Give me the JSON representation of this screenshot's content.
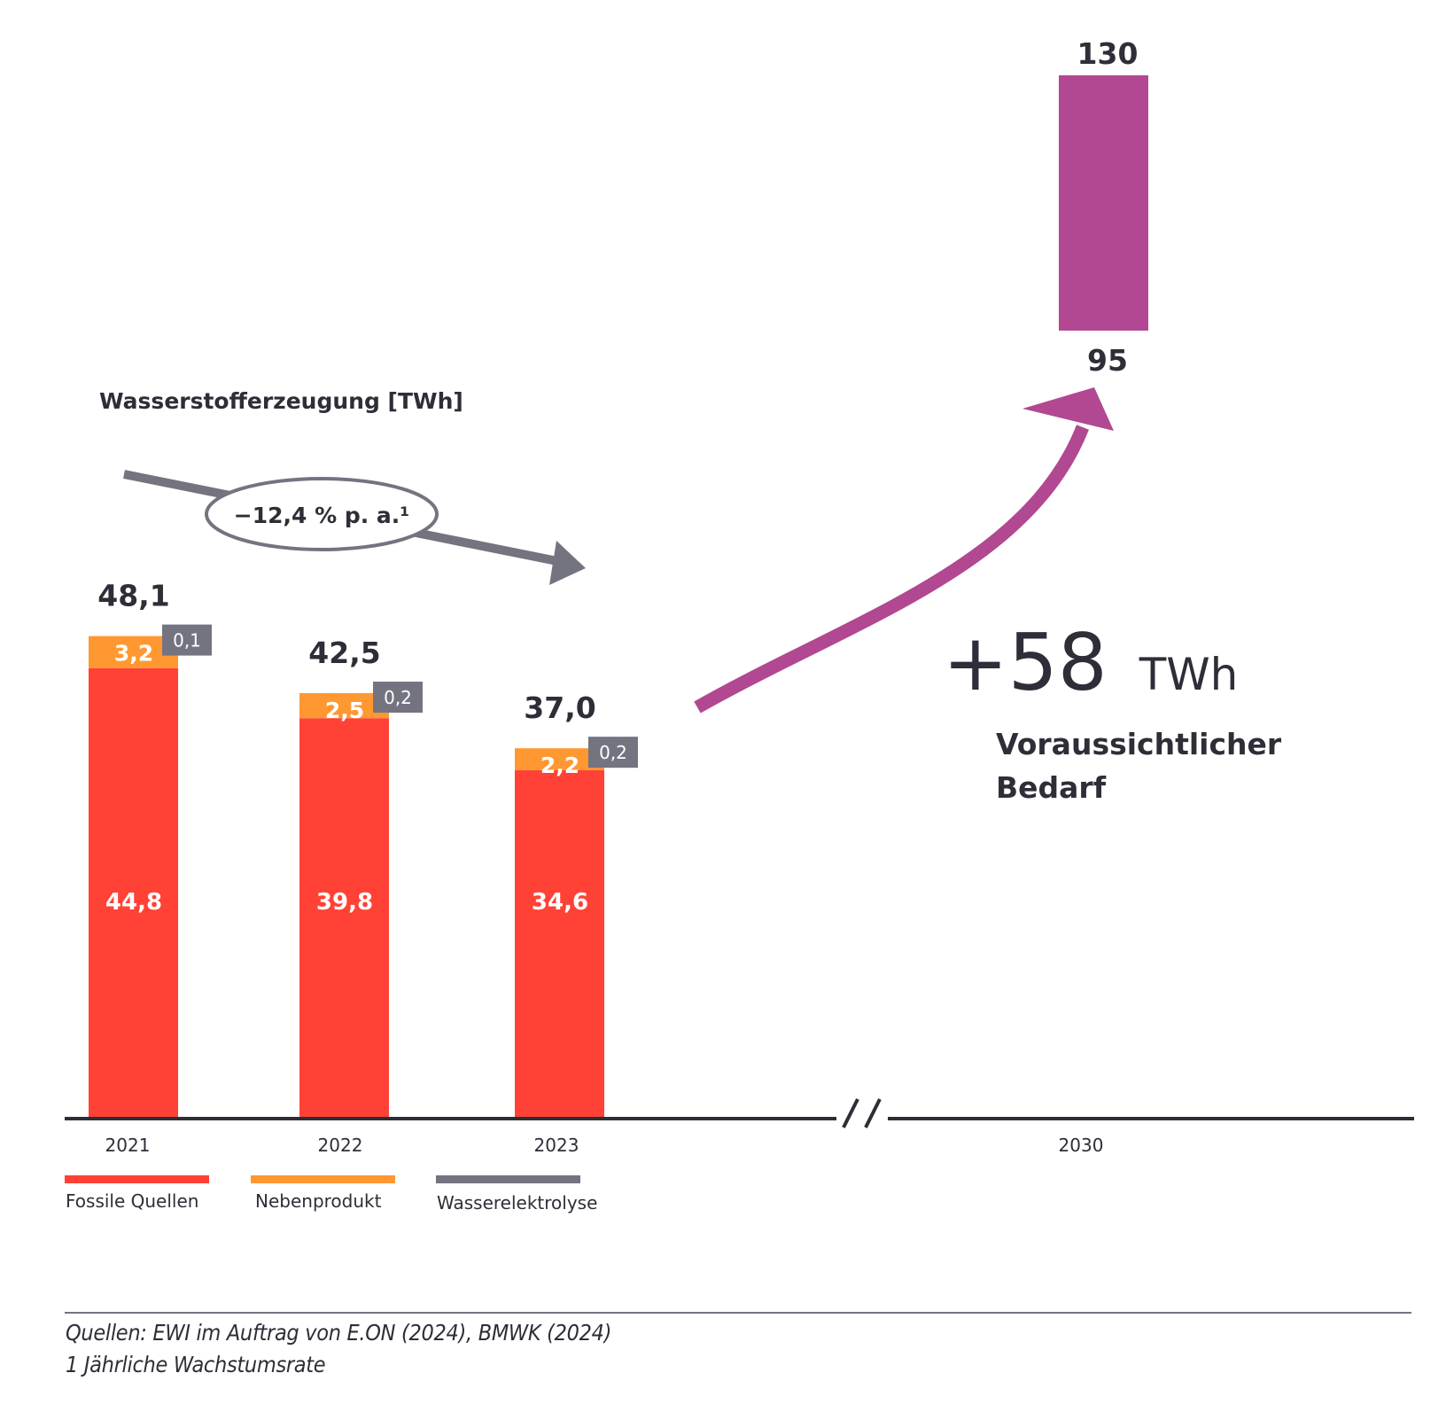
{
  "colors": {
    "fossil": "#ff4136",
    "byproduct": "#ff9831",
    "electrolysis": "#747480",
    "demand": "#b14891",
    "text": "#2e2e38",
    "axis": "#2e2e38"
  },
  "chart_data": {
    "type": "bar",
    "title": "Wasserstofferzeugung [TWh]",
    "xlabel": "",
    "ylabel": "TWh",
    "categories": [
      "2021",
      "2022",
      "2023",
      "2030"
    ],
    "series": [
      {
        "name": "Fossile Quellen",
        "key": "fossil",
        "values": [
          44.8,
          39.8,
          34.6,
          null
        ],
        "labels": [
          "44,8",
          "39,8",
          "34,6",
          null
        ]
      },
      {
        "name": "Nebenprodukt",
        "key": "byproduct",
        "values": [
          3.2,
          2.5,
          2.2,
          null
        ],
        "labels": [
          "3,2",
          "2,5",
          "2,2",
          null
        ]
      },
      {
        "name": "Wasserelektrolyse",
        "key": "electrolysis",
        "values": [
          0.1,
          0.2,
          0.2,
          null
        ],
        "labels": [
          "0,1",
          "0,2",
          "0,2",
          null
        ]
      }
    ],
    "totals": [
      48.1,
      42.5,
      37.0
    ],
    "total_labels": [
      "48,1",
      "42,5",
      "37,0"
    ],
    "projection_2030": {
      "category": "2030",
      "low": 95,
      "high": 130,
      "low_label": "95",
      "high_label": "130",
      "series": "Voraussichtlicher Bedarf"
    },
    "axis_break": "//",
    "legend": {
      "position": "bottom-left",
      "entries": [
        "Fossile Quellen",
        "Nebenprodukt",
        "Wasserelektrolyse"
      ]
    },
    "grid": false,
    "annotations": [
      {
        "type": "trend-arrow-down",
        "text": "−12,4 % p. a.¹",
        "value": -12.4,
        "unit": "% p. a."
      },
      {
        "type": "growth-arrow-up",
        "text": "+58 TWh",
        "value": 58
      }
    ]
  },
  "title": "Wasserstofferzeugung [TWh]",
  "cagr_label": "−12,4 % p. a.¹",
  "growth": {
    "number": "+58",
    "unit": "TWh",
    "caption_line1": "Voraussichtlicher",
    "caption_line2": "Bedarf"
  },
  "footer": {
    "sources": "Quellen: EWI im Auftrag von E.ON (2024), BMWK (2024)",
    "note": "1 Jährliche Wachstumsrate"
  }
}
